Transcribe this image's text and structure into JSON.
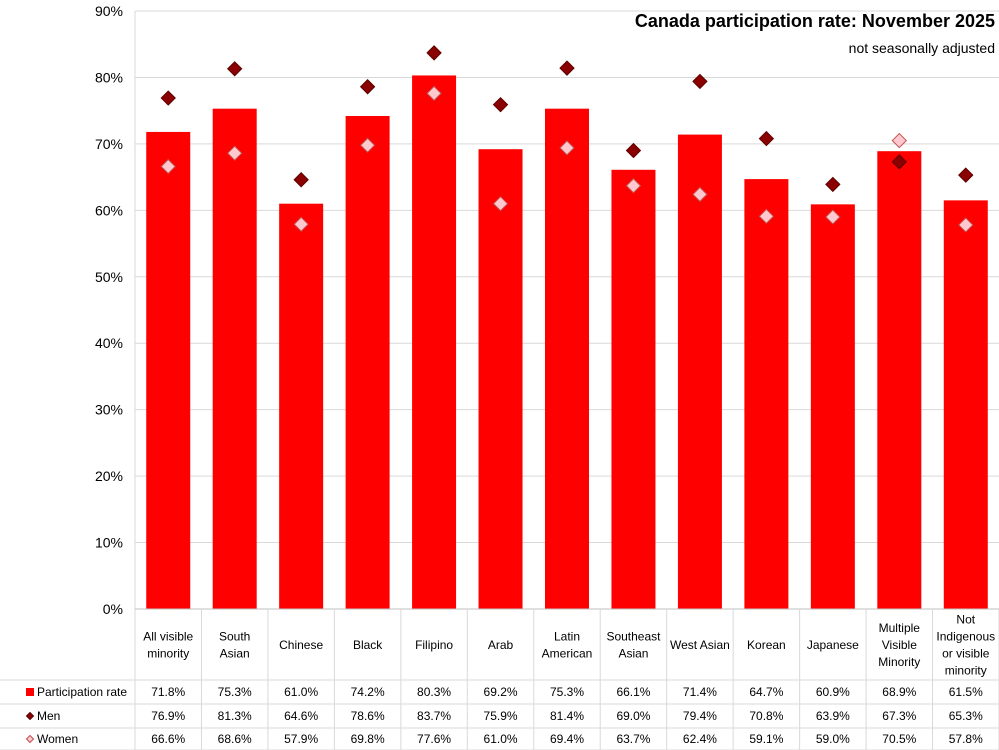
{
  "chart_data": {
    "type": "bar",
    "title": "Canada participation rate: November 2025",
    "subtitle": "not seasonally adjusted",
    "ylim": [
      0,
      90
    ],
    "yticks": [
      "0%",
      "10%",
      "20%",
      "30%",
      "40%",
      "50%",
      "60%",
      "70%",
      "80%",
      "90%"
    ],
    "grid": true,
    "categories": [
      [
        "All visible",
        "minority"
      ],
      [
        "South",
        "Asian"
      ],
      [
        "Chinese"
      ],
      [
        "Black"
      ],
      [
        "Filipino"
      ],
      [
        "Arab"
      ],
      [
        "Latin",
        "American"
      ],
      [
        "Southeast",
        "Asian"
      ],
      [
        "West Asian"
      ],
      [
        "Korean"
      ],
      [
        "Japanese"
      ],
      [
        "Multiple",
        "Visible",
        "Minority"
      ],
      [
        "Not",
        "Indigenous",
        "or visible",
        "minority"
      ]
    ],
    "series": [
      {
        "name": "Participation rate",
        "kind": "bar",
        "color": "#ff0000",
        "values": [
          71.8,
          75.3,
          61.0,
          74.2,
          80.3,
          69.2,
          75.3,
          66.1,
          71.4,
          64.7,
          60.9,
          68.9,
          61.5
        ],
        "labels": [
          "71.8%",
          "75.3%",
          "61.0%",
          "74.2%",
          "80.3%",
          "69.2%",
          "75.3%",
          "66.1%",
          "71.4%",
          "64.7%",
          "60.9%",
          "68.9%",
          "61.5%"
        ]
      },
      {
        "name": "Men",
        "kind": "marker",
        "color": "#8b0000",
        "values": [
          76.9,
          81.3,
          64.6,
          78.6,
          83.7,
          75.9,
          81.4,
          69.0,
          79.4,
          70.8,
          63.9,
          67.3,
          65.3
        ],
        "labels": [
          "76.9%",
          "81.3%",
          "64.6%",
          "78.6%",
          "83.7%",
          "75.9%",
          "81.4%",
          "69.0%",
          "79.4%",
          "70.8%",
          "63.9%",
          "67.3%",
          "65.3%"
        ]
      },
      {
        "name": "Women",
        "kind": "marker",
        "color": "#ffc7ce",
        "values": [
          66.6,
          68.6,
          57.9,
          69.8,
          77.6,
          61.0,
          69.4,
          63.7,
          62.4,
          59.1,
          59.0,
          70.5,
          57.8
        ],
        "labels": [
          "66.6%",
          "68.6%",
          "57.9%",
          "69.8%",
          "77.6%",
          "61.0%",
          "69.4%",
          "63.7%",
          "62.4%",
          "59.1%",
          "59.0%",
          "70.5%",
          "57.8%"
        ]
      }
    ]
  }
}
